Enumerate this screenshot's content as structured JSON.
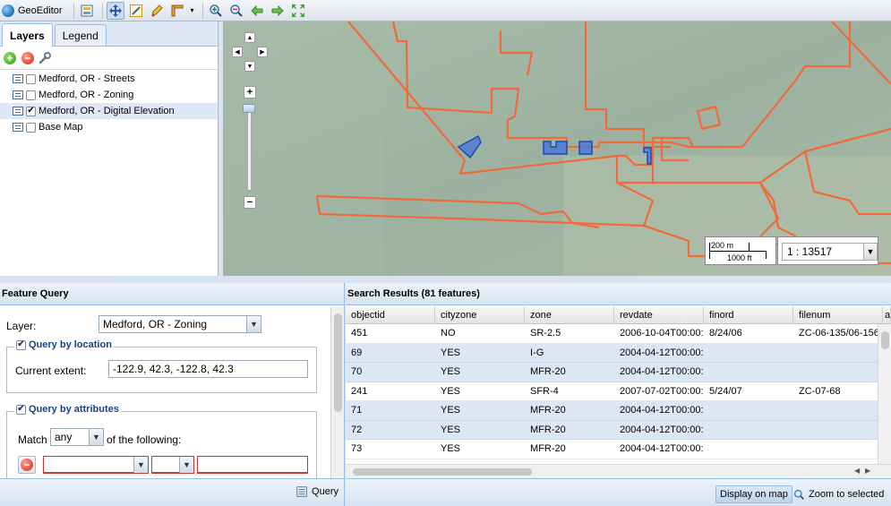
{
  "app": {
    "title": "GeoEditor"
  },
  "toolbar": {
    "buttons": [
      "layers-icon",
      "pan-icon",
      "zoom-box-icon",
      "edit-icon",
      "measure-icon",
      "zoom-in-icon",
      "zoom-out-icon",
      "back-icon",
      "forward-icon",
      "full-extent-icon"
    ],
    "pressed": "pan-icon"
  },
  "layers_panel": {
    "tabs": [
      {
        "label": "Layers",
        "active": true
      },
      {
        "label": "Legend",
        "active": false
      }
    ],
    "layers": [
      {
        "label": "Medford, OR - Streets",
        "checked": false,
        "selected": false
      },
      {
        "label": "Medford, OR - Zoning",
        "checked": false,
        "selected": false
      },
      {
        "label": "Medford, OR - Digital Elevation",
        "checked": true,
        "selected": true
      },
      {
        "label": "Base Map",
        "checked": false,
        "selected": false
      }
    ]
  },
  "map": {
    "scale_top": "200 m",
    "scale_bottom": "1000 ft",
    "scale_value": "1 : 13517",
    "colors": {
      "background": "#9fb3a3",
      "boundary": "#f06a3a",
      "selection": "#3a6ed8"
    }
  },
  "feature_query": {
    "title": "Feature Query",
    "layer_label": "Layer:",
    "layer_value": "Medford, OR - Zoning",
    "location": {
      "label": "Query by location",
      "checked": true,
      "extent_label": "Current extent:",
      "extent_value": "-122.9, 42.3, -122.8, 42.3"
    },
    "attributes": {
      "label": "Query by attributes",
      "checked": true,
      "match_label": "Match",
      "match_value": "any",
      "match_suffix": "of the following:"
    },
    "query_button": "Query"
  },
  "search_results": {
    "title": "Search Results (81 features)",
    "columns": [
      "objectid",
      "cityzone",
      "zone",
      "revdate",
      "finord",
      "filenum",
      "a"
    ],
    "rows": [
      [
        "451",
        "NO",
        "SR-2.5",
        "2006-10-04T00:00:",
        "8/24/06",
        "ZC-06-135/06-156"
      ],
      [
        "69",
        "YES",
        "I-G",
        "2004-04-12T00:00:",
        "",
        ""
      ],
      [
        "70",
        "YES",
        "MFR-20",
        "2004-04-12T00:00:",
        "",
        ""
      ],
      [
        "241",
        "YES",
        "SFR-4",
        "2007-07-02T00:00:",
        "5/24/07",
        "ZC-07-68"
      ],
      [
        "71",
        "YES",
        "MFR-20",
        "2004-04-12T00:00:",
        "",
        ""
      ],
      [
        "72",
        "YES",
        "MFR-20",
        "2004-04-12T00:00:",
        "",
        ""
      ],
      [
        "73",
        "YES",
        "MFR-20",
        "2004-04-12T00:00:",
        "",
        ""
      ]
    ],
    "display_button": "Display on map",
    "zoom_button": "Zoom to selected"
  }
}
